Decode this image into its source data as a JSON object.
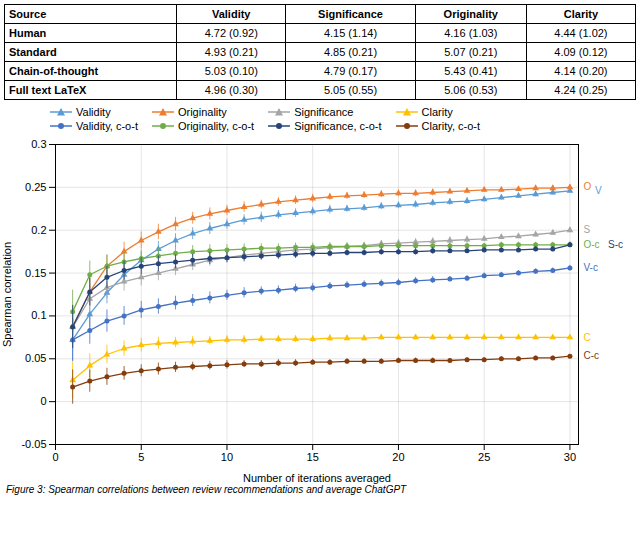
{
  "chart_data": {
    "type": "line",
    "table": {
      "headers": [
        "Source",
        "Validity",
        "Significance",
        "Originality",
        "Clarity"
      ],
      "rows": [
        [
          "Human",
          "4.72 (0.92)",
          "4.15 (1.14)",
          "4.16 (1.03)",
          "4.44 (1.02)"
        ],
        [
          "Standard",
          "4.93 (0.21)",
          "4.85 (0.21)",
          "5.07 (0.21)",
          "4.09 (0.12)"
        ],
        [
          "Chain-of-thought",
          "5.03 (0.10)",
          "4.79 (0.17)",
          "5.43 (0.41)",
          "4.14 (0.20)"
        ],
        [
          "Full text LaTeX",
          "4.96 (0.30)",
          "5.05 (0.55)",
          "5.06 (0.53)",
          "4.24 (0.25)"
        ]
      ]
    },
    "x": [
      1,
      2,
      3,
      4,
      5,
      6,
      7,
      8,
      9,
      10,
      11,
      12,
      13,
      14,
      15,
      16,
      17,
      18,
      19,
      20,
      21,
      22,
      23,
      24,
      25,
      26,
      27,
      28,
      29,
      30
    ],
    "series": [
      {
        "name": "Validity",
        "color": "#5b9bd5",
        "marker": "triangle",
        "values": [
          0.072,
          0.102,
          0.127,
          0.148,
          0.165,
          0.178,
          0.188,
          0.196,
          0.202,
          0.207,
          0.212,
          0.215,
          0.218,
          0.22,
          0.222,
          0.224,
          0.225,
          0.226,
          0.228,
          0.229,
          0.23,
          0.232,
          0.233,
          0.234,
          0.236,
          0.238,
          0.24,
          0.242,
          0.244,
          0.246
        ],
        "errors": [
          0.025,
          0.016,
          0.013,
          0.011,
          0.01,
          0.009,
          0.008,
          0.007,
          0.007,
          0.006,
          0.006,
          0.006,
          0.005,
          0.005,
          0.005,
          0.005,
          0.004,
          0.004,
          0.004,
          0.004,
          0.004,
          0.004,
          0.004,
          0.004,
          0.003,
          0.003,
          0.003,
          0.003,
          0.003,
          0.003
        ]
      },
      {
        "name": "Originality",
        "color": "#ed7d31",
        "marker": "triangle",
        "values": [
          0.088,
          0.128,
          0.158,
          0.175,
          0.188,
          0.198,
          0.207,
          0.214,
          0.219,
          0.223,
          0.227,
          0.23,
          0.233,
          0.235,
          0.237,
          0.239,
          0.24,
          0.241,
          0.242,
          0.243,
          0.243,
          0.244,
          0.245,
          0.246,
          0.247,
          0.247,
          0.248,
          0.249,
          0.249,
          0.25
        ],
        "errors": [
          0.025,
          0.017,
          0.013,
          0.011,
          0.01,
          0.009,
          0.008,
          0.007,
          0.007,
          0.006,
          0.006,
          0.005,
          0.005,
          0.005,
          0.005,
          0.004,
          0.004,
          0.004,
          0.004,
          0.004,
          0.004,
          0.004,
          0.003,
          0.003,
          0.003,
          0.003,
          0.003,
          0.003,
          0.003,
          0.003
        ]
      },
      {
        "name": "Significance",
        "color": "#a5a5a5",
        "marker": "triangle",
        "values": [
          0.087,
          0.12,
          0.133,
          0.14,
          0.145,
          0.15,
          0.155,
          0.16,
          0.165,
          0.168,
          0.171,
          0.173,
          0.175,
          0.177,
          0.178,
          0.18,
          0.181,
          0.182,
          0.184,
          0.185,
          0.186,
          0.187,
          0.188,
          0.189,
          0.19,
          0.192,
          0.193,
          0.195,
          0.197,
          0.2
        ],
        "errors": [
          0.025,
          0.016,
          0.013,
          0.011,
          0.01,
          0.009,
          0.008,
          0.007,
          0.007,
          0.006,
          0.006,
          0.006,
          0.005,
          0.005,
          0.005,
          0.005,
          0.004,
          0.004,
          0.004,
          0.004,
          0.004,
          0.004,
          0.004,
          0.004,
          0.003,
          0.003,
          0.003,
          0.003,
          0.003,
          0.003
        ]
      },
      {
        "name": "Clarity",
        "color": "#ffc000",
        "marker": "triangle",
        "values": [
          0.025,
          0.042,
          0.055,
          0.062,
          0.066,
          0.068,
          0.069,
          0.07,
          0.071,
          0.072,
          0.072,
          0.073,
          0.073,
          0.073,
          0.073,
          0.074,
          0.074,
          0.074,
          0.075,
          0.075,
          0.075,
          0.075,
          0.075,
          0.075,
          0.075,
          0.075,
          0.075,
          0.075,
          0.075,
          0.075
        ],
        "errors": [
          0.022,
          0.014,
          0.011,
          0.009,
          0.008,
          0.007,
          0.006,
          0.006,
          0.005,
          0.005,
          0.005,
          0.004,
          0.004,
          0.004,
          0.004,
          0.004,
          0.003,
          0.003,
          0.003,
          0.003,
          0.003,
          0.003,
          0.003,
          0.003,
          0.003,
          0.003,
          0.002,
          0.002,
          0.002,
          0.002
        ]
      },
      {
        "name": "Validity, c-o-t",
        "color": "#4472c4",
        "marker": "circle",
        "values": [
          0.072,
          0.083,
          0.094,
          0.1,
          0.107,
          0.111,
          0.115,
          0.118,
          0.121,
          0.124,
          0.127,
          0.129,
          0.13,
          0.132,
          0.133,
          0.135,
          0.136,
          0.137,
          0.138,
          0.139,
          0.141,
          0.142,
          0.143,
          0.144,
          0.147,
          0.148,
          0.15,
          0.152,
          0.153,
          0.156
        ],
        "errors": [
          0.025,
          0.016,
          0.013,
          0.011,
          0.01,
          0.009,
          0.008,
          0.007,
          0.007,
          0.006,
          0.006,
          0.005,
          0.005,
          0.005,
          0.005,
          0.004,
          0.004,
          0.004,
          0.004,
          0.004,
          0.004,
          0.004,
          0.003,
          0.003,
          0.003,
          0.003,
          0.003,
          0.003,
          0.003,
          0.003
        ]
      },
      {
        "name": "Originality, c-o-t",
        "color": "#70ad47",
        "marker": "circle",
        "values": [
          0.105,
          0.148,
          0.158,
          0.163,
          0.167,
          0.17,
          0.173,
          0.175,
          0.176,
          0.177,
          0.178,
          0.179,
          0.179,
          0.18,
          0.18,
          0.181,
          0.181,
          0.181,
          0.182,
          0.182,
          0.182,
          0.182,
          0.182,
          0.182,
          0.182,
          0.183,
          0.183,
          0.183,
          0.183,
          0.183
        ],
        "errors": [
          0.025,
          0.016,
          0.013,
          0.011,
          0.01,
          0.009,
          0.008,
          0.007,
          0.007,
          0.006,
          0.006,
          0.005,
          0.005,
          0.005,
          0.005,
          0.004,
          0.004,
          0.004,
          0.004,
          0.004,
          0.004,
          0.004,
          0.003,
          0.003,
          0.003,
          0.003,
          0.003,
          0.003,
          0.003,
          0.003
        ]
      },
      {
        "name": "Significance, c-o-t",
        "color": "#264478",
        "marker": "circle",
        "values": [
          0.087,
          0.128,
          0.145,
          0.153,
          0.158,
          0.161,
          0.163,
          0.165,
          0.167,
          0.168,
          0.169,
          0.17,
          0.171,
          0.172,
          0.173,
          0.173,
          0.174,
          0.174,
          0.175,
          0.175,
          0.175,
          0.176,
          0.176,
          0.176,
          0.177,
          0.177,
          0.177,
          0.178,
          0.178,
          0.183
        ],
        "errors": [
          0.025,
          0.016,
          0.013,
          0.011,
          0.01,
          0.009,
          0.008,
          0.007,
          0.007,
          0.006,
          0.006,
          0.005,
          0.005,
          0.005,
          0.005,
          0.004,
          0.004,
          0.004,
          0.004,
          0.004,
          0.004,
          0.004,
          0.003,
          0.003,
          0.003,
          0.003,
          0.003,
          0.003,
          0.003,
          0.003
        ]
      },
      {
        "name": "Clarity, c-o-t",
        "color": "#843c0c",
        "marker": "circle",
        "values": [
          0.017,
          0.024,
          0.029,
          0.033,
          0.036,
          0.038,
          0.04,
          0.041,
          0.042,
          0.043,
          0.044,
          0.044,
          0.045,
          0.045,
          0.046,
          0.046,
          0.047,
          0.047,
          0.047,
          0.048,
          0.048,
          0.048,
          0.048,
          0.049,
          0.049,
          0.05,
          0.05,
          0.051,
          0.051,
          0.053
        ],
        "errors": [
          0.02,
          0.013,
          0.01,
          0.008,
          0.007,
          0.007,
          0.006,
          0.005,
          0.005,
          0.005,
          0.004,
          0.004,
          0.004,
          0.004,
          0.003,
          0.003,
          0.003,
          0.003,
          0.003,
          0.003,
          0.003,
          0.003,
          0.002,
          0.002,
          0.002,
          0.002,
          0.002,
          0.002,
          0.002,
          0.002
        ]
      }
    ],
    "annotations": [
      {
        "text": "O",
        "y": 0.2505,
        "series": "Originality"
      },
      {
        "text": "V",
        "y": 0.246,
        "series": "Validity"
      },
      {
        "text": "S",
        "y": 0.2,
        "series": "Significance"
      },
      {
        "text": "O-c",
        "y": 0.183,
        "series": "Originality, c-o-t"
      },
      {
        "text": "S-c",
        "y": 0.183,
        "series": "Significance, c-o-t"
      },
      {
        "text": "V-c",
        "y": 0.156,
        "series": "Validity, c-o-t"
      },
      {
        "text": "C",
        "y": 0.075,
        "series": "Clarity"
      },
      {
        "text": "C-c",
        "y": 0.053,
        "series": "Clarity, c-o-t"
      }
    ],
    "xlabel": "Number of iterations averaged",
    "ylabel": "Spearman correlation",
    "caption": "Figure 3: Spearman correlations between review recommendations and average ChatGPT",
    "xlim": [
      0,
      30.5
    ],
    "xticks": [
      0,
      5,
      10,
      15,
      20,
      25,
      30
    ],
    "ylim": [
      -0.05,
      0.3
    ],
    "yticks": [
      -0.05,
      0,
      0.05,
      0.1,
      0.15,
      0.2,
      0.25,
      0.3
    ],
    "grid": true,
    "legend": "top"
  }
}
